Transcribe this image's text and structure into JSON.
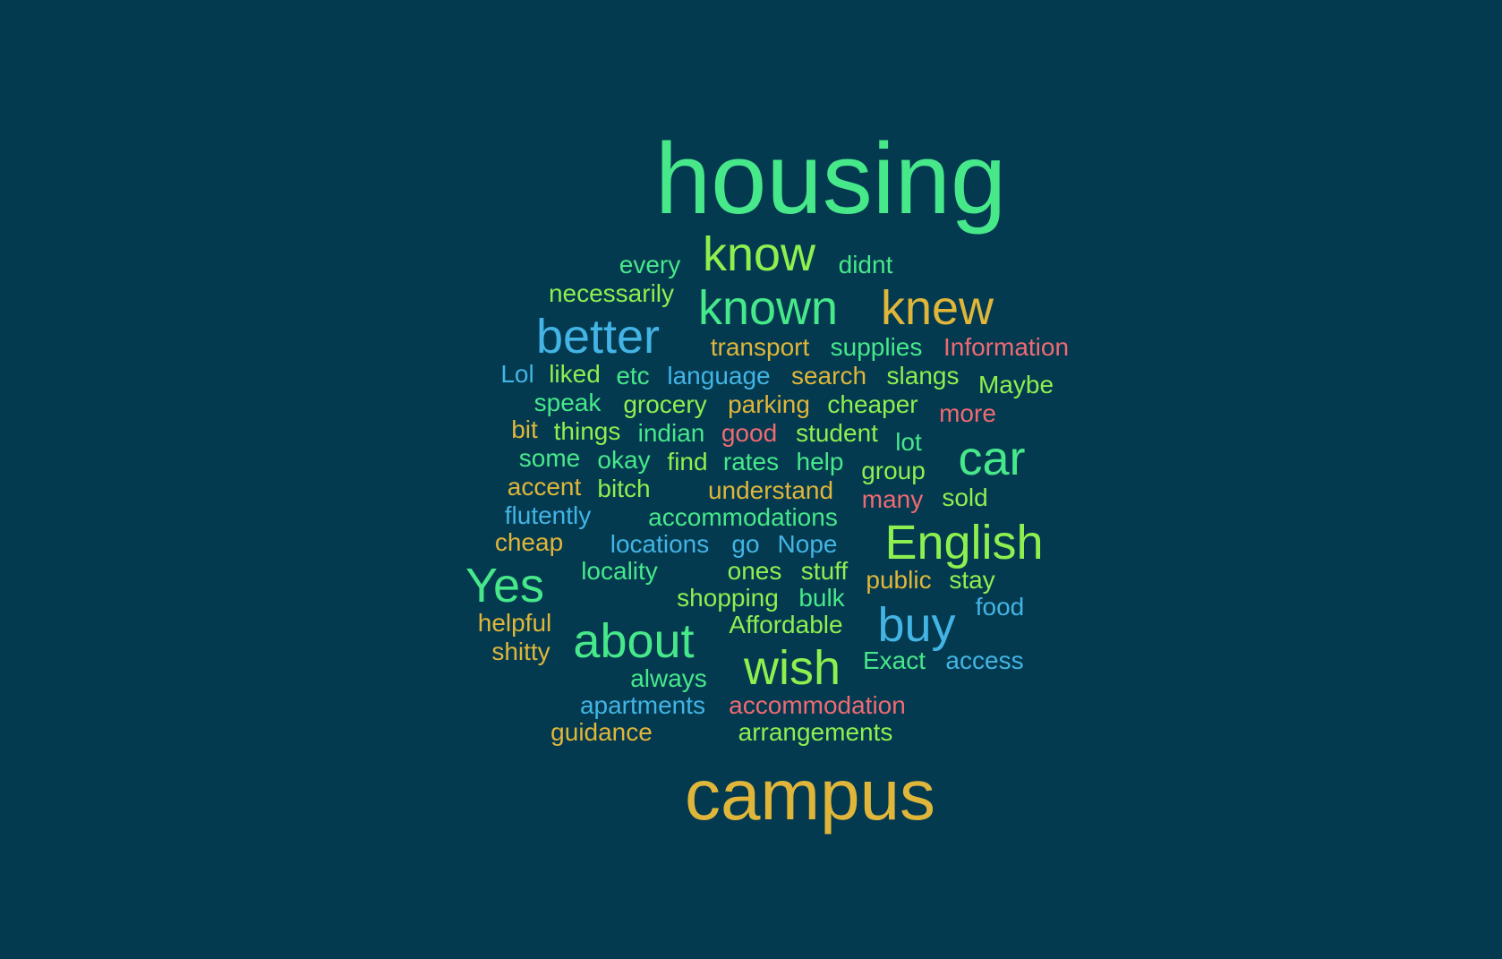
{
  "palette": {
    "background": "#033a50",
    "green": "#47e88a",
    "lime": "#8ef04f",
    "gold": "#e0b63a",
    "blue": "#43b4e4",
    "red": "#f06a72"
  },
  "words": [
    {
      "text": "housing",
      "color": "green"
    },
    {
      "text": "know",
      "color": "lime"
    },
    {
      "text": "every",
      "color": "green"
    },
    {
      "text": "didnt",
      "color": "green"
    },
    {
      "text": "necessarily",
      "color": "lime"
    },
    {
      "text": "known",
      "color": "green"
    },
    {
      "text": "knew",
      "color": "gold"
    },
    {
      "text": "better",
      "color": "blue"
    },
    {
      "text": "transport",
      "color": "gold"
    },
    {
      "text": "supplies",
      "color": "green"
    },
    {
      "text": "Information",
      "color": "red"
    },
    {
      "text": "Lol",
      "color": "blue"
    },
    {
      "text": "liked",
      "color": "lime"
    },
    {
      "text": "etc",
      "color": "green"
    },
    {
      "text": "language",
      "color": "blue"
    },
    {
      "text": "search",
      "color": "gold"
    },
    {
      "text": "slangs",
      "color": "lime"
    },
    {
      "text": "Maybe",
      "color": "lime"
    },
    {
      "text": "speak",
      "color": "green"
    },
    {
      "text": "grocery",
      "color": "lime"
    },
    {
      "text": "parking",
      "color": "gold"
    },
    {
      "text": "cheaper",
      "color": "lime"
    },
    {
      "text": "more",
      "color": "red"
    },
    {
      "text": "bit",
      "color": "gold"
    },
    {
      "text": "things",
      "color": "lime"
    },
    {
      "text": "indian",
      "color": "green"
    },
    {
      "text": "good",
      "color": "red"
    },
    {
      "text": "student",
      "color": "lime"
    },
    {
      "text": "lot",
      "color": "green"
    },
    {
      "text": "car",
      "color": "green"
    },
    {
      "text": "some",
      "color": "green"
    },
    {
      "text": "okay",
      "color": "green"
    },
    {
      "text": "find",
      "color": "lime"
    },
    {
      "text": "rates",
      "color": "green"
    },
    {
      "text": "help",
      "color": "green"
    },
    {
      "text": "group",
      "color": "lime"
    },
    {
      "text": "accent",
      "color": "gold"
    },
    {
      "text": "bitch",
      "color": "lime"
    },
    {
      "text": "understand",
      "color": "gold"
    },
    {
      "text": "many",
      "color": "red"
    },
    {
      "text": "sold",
      "color": "lime"
    },
    {
      "text": "flutently",
      "color": "blue"
    },
    {
      "text": "accommodations",
      "color": "green"
    },
    {
      "text": "English",
      "color": "lime"
    },
    {
      "text": "cheap",
      "color": "gold"
    },
    {
      "text": "locations",
      "color": "blue"
    },
    {
      "text": "go",
      "color": "blue"
    },
    {
      "text": "Nope",
      "color": "blue"
    },
    {
      "text": "Yes",
      "color": "green"
    },
    {
      "text": "locality",
      "color": "green"
    },
    {
      "text": "ones",
      "color": "lime"
    },
    {
      "text": "stuff",
      "color": "lime"
    },
    {
      "text": "public",
      "color": "gold"
    },
    {
      "text": "stay",
      "color": "lime"
    },
    {
      "text": "shopping",
      "color": "lime"
    },
    {
      "text": "bulk",
      "color": "green"
    },
    {
      "text": "food",
      "color": "blue"
    },
    {
      "text": "buy",
      "color": "blue"
    },
    {
      "text": "helpful",
      "color": "gold"
    },
    {
      "text": "about",
      "color": "green"
    },
    {
      "text": "Affordable",
      "color": "lime"
    },
    {
      "text": "shitty",
      "color": "gold"
    },
    {
      "text": "wish",
      "color": "lime"
    },
    {
      "text": "Exact",
      "color": "green"
    },
    {
      "text": "access",
      "color": "blue"
    },
    {
      "text": "always",
      "color": "green"
    },
    {
      "text": "apartments",
      "color": "blue"
    },
    {
      "text": "accommodation",
      "color": "red"
    },
    {
      "text": "guidance",
      "color": "gold"
    },
    {
      "text": "arrangements",
      "color": "lime"
    },
    {
      "text": "campus",
      "color": "gold"
    }
  ]
}
